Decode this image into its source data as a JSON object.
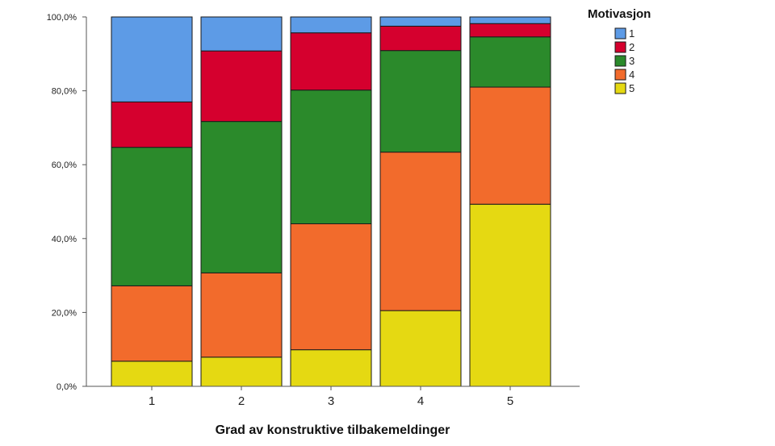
{
  "chart_data": {
    "type": "bar",
    "stacked": true,
    "xlabel": "Grad av konstruktive tilbakemeldinger",
    "ylabel": "",
    "ylim": [
      0,
      100
    ],
    "yticks": [
      0,
      20,
      40,
      60,
      80,
      100
    ],
    "ytick_labels": [
      "0,0%",
      "20,0%",
      "40,0%",
      "60,0%",
      "80,0%",
      "100,0%"
    ],
    "categories": [
      "1",
      "2",
      "3",
      "4",
      "5"
    ],
    "legend": {
      "title": "Motivasjon",
      "position": "top-right"
    },
    "series": [
      {
        "name": "5",
        "color": "#e5d912",
        "values": [
          6.8,
          7.9,
          9.9,
          20.5,
          49.3
        ]
      },
      {
        "name": "4",
        "color": "#f26b2c",
        "values": [
          20.4,
          22.8,
          34.1,
          42.9,
          31.7
        ]
      },
      {
        "name": "3",
        "color": "#2b8a2b",
        "values": [
          37.5,
          41.0,
          36.2,
          27.5,
          13.6
        ]
      },
      {
        "name": "2",
        "color": "#d5002e",
        "values": [
          12.3,
          19.1,
          15.5,
          6.6,
          3.6
        ]
      },
      {
        "name": "1",
        "color": "#5d9be6",
        "values": [
          23.0,
          9.2,
          4.3,
          2.5,
          1.8
        ]
      }
    ],
    "legend_order": [
      "1",
      "2",
      "3",
      "4",
      "5"
    ],
    "grid": false
  }
}
